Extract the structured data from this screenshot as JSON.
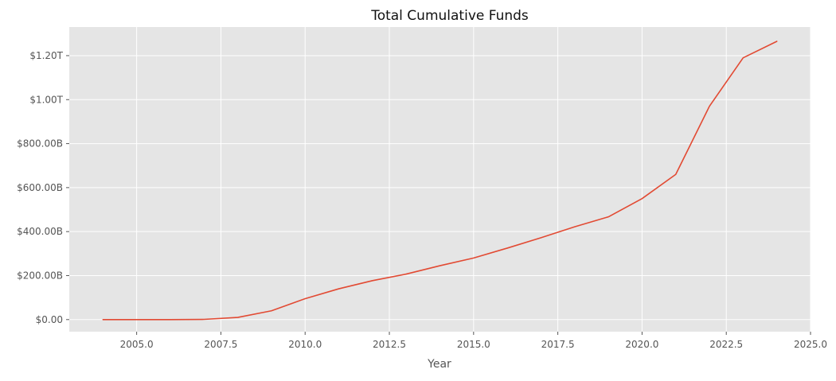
{
  "chart_data": {
    "type": "line",
    "title": "Total Cumulative Funds",
    "xlabel": "Year",
    "ylabel": "",
    "xlim": [
      2003.0,
      2025.0
    ],
    "ylim": [
      -55,
      1330
    ],
    "x_ticks": [
      2005.0,
      2007.5,
      2010.0,
      2012.5,
      2015.0,
      2017.5,
      2020.0,
      2022.5,
      2025.0
    ],
    "x_tick_labels": [
      "2005.0",
      "2007.5",
      "2010.0",
      "2012.5",
      "2015.0",
      "2017.5",
      "2020.0",
      "2022.5",
      "2025.0"
    ],
    "y_ticks": [
      0,
      200,
      400,
      600,
      800,
      1000,
      1200
    ],
    "y_tick_labels": [
      "$0.00",
      "$200.00B",
      "$400.00B",
      "$600.00B",
      "$800.00B",
      "$1.00T",
      "$1.20T"
    ],
    "y_unit": "billions of dollars",
    "grid": true,
    "background_color": "#e5e5e5",
    "grid_color": "#ffffff",
    "line_color": "#e24a33",
    "series": [
      {
        "x": [
          2004,
          2005,
          2006,
          2007,
          2008,
          2009,
          2010,
          2011,
          2012,
          2013,
          2014,
          2015,
          2016,
          2017,
          2018,
          2019,
          2020,
          2021,
          2022,
          2023,
          2024
        ],
        "values": [
          0,
          0,
          0,
          1,
          10,
          40,
          95,
          140,
          177,
          207,
          245,
          280,
          325,
          372,
          422,
          467,
          550,
          660,
          970,
          1190,
          1265
        ]
      }
    ]
  }
}
